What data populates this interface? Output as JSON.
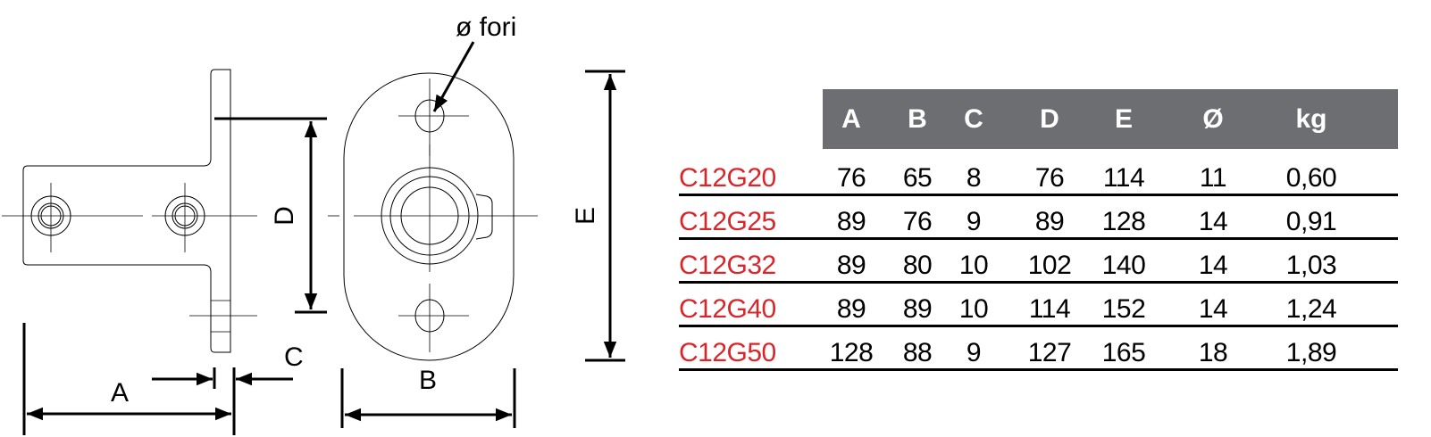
{
  "drawing": {
    "labels": {
      "hole_diameter": "ø fori",
      "A": "A",
      "B": "B",
      "C": "C",
      "D": "D",
      "E": "E"
    }
  },
  "table": {
    "header_color": "#6d6e71",
    "code_color": "#d9262b",
    "columns": [
      "A",
      "B",
      "C",
      "D",
      "E",
      "Ø",
      "kg"
    ],
    "rows": [
      {
        "code": "C12G20",
        "values": [
          "76",
          "65",
          "8",
          "76",
          "114",
          "11",
          "0,60"
        ]
      },
      {
        "code": "C12G25",
        "values": [
          "89",
          "76",
          "9",
          "89",
          "128",
          "14",
          "0,91"
        ]
      },
      {
        "code": "C12G32",
        "values": [
          "89",
          "80",
          "10",
          "102",
          "140",
          "14",
          "1,03"
        ]
      },
      {
        "code": "C12G40",
        "values": [
          "89",
          "89",
          "10",
          "114",
          "152",
          "14",
          "1,24"
        ]
      },
      {
        "code": "C12G50",
        "values": [
          "128",
          "88",
          "9",
          "127",
          "165",
          "18",
          "1,89"
        ]
      }
    ]
  }
}
